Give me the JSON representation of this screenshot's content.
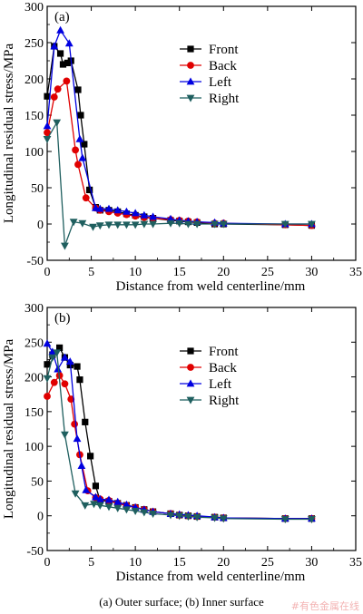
{
  "chart_data": [
    {
      "type": "line",
      "panel_label": "(a)",
      "xlabel": "Distance from weld centerline/mm",
      "ylabel": "Longitudinal residual stress/MPa",
      "xlim": [
        0,
        35
      ],
      "ylim": [
        -50,
        300
      ],
      "xticks": [
        0,
        5,
        10,
        15,
        20,
        25,
        30,
        35
      ],
      "yticks": [
        -50,
        0,
        50,
        100,
        150,
        200,
        250,
        300
      ],
      "grid": false,
      "legend_position": "top-right",
      "series": [
        {
          "name": "Front",
          "color": "#000000",
          "marker": "square",
          "x": [
            0,
            0.8,
            1.5,
            1.8,
            2.3,
            2.7,
            3.5,
            3.8,
            4.2,
            4.8,
            5.5,
            6,
            7,
            8,
            9,
            10,
            11,
            12,
            14,
            15,
            16,
            17,
            19,
            20,
            27,
            30
          ],
          "y": [
            176,
            245,
            235,
            220,
            222,
            225,
            185,
            150,
            110,
            47,
            23,
            19,
            19,
            17,
            14,
            12,
            10,
            8,
            5,
            4,
            3,
            2,
            0,
            0,
            -1,
            -2
          ]
        },
        {
          "name": "Back",
          "color": "#e00000",
          "marker": "circle",
          "x": [
            0,
            0.8,
            1.2,
            2.2,
            3.2,
            3.5,
            4.4,
            5.5,
            6,
            7,
            8,
            9,
            10,
            11,
            12,
            14,
            15,
            16,
            17,
            19,
            20,
            27,
            30
          ],
          "y": [
            126,
            175,
            186,
            197,
            102,
            82,
            36,
            22,
            19,
            17,
            15,
            13,
            11,
            9,
            8,
            6,
            5,
            4,
            3,
            1,
            1,
            -1,
            -2
          ]
        },
        {
          "name": "Left",
          "color": "#0000e0",
          "marker": "triangle-up",
          "x": [
            0,
            0.8,
            1.5,
            2.5,
            3.7,
            4,
            5.5,
            6,
            7,
            8,
            9,
            10,
            11,
            12,
            14,
            15,
            16,
            17,
            19,
            20,
            27,
            30
          ],
          "y": [
            135,
            245,
            267,
            249,
            117,
            91,
            22,
            21,
            21,
            19,
            17,
            15,
            12,
            10,
            7,
            5,
            4,
            3,
            2,
            1,
            0,
            0
          ]
        },
        {
          "name": "Right",
          "color": "#1f5f5f",
          "marker": "triangle-down",
          "x": [
            0,
            1.1,
            2,
            3,
            4,
            5.2,
            6,
            7,
            8,
            9,
            10,
            11,
            12,
            14,
            15,
            16,
            17,
            19,
            20,
            27,
            30
          ],
          "y": [
            117,
            140,
            -30,
            3,
            1,
            -4,
            -2,
            -1,
            -1,
            -1,
            -1,
            0,
            0,
            1,
            1,
            0,
            0,
            0,
            0,
            0,
            0
          ]
        }
      ]
    },
    {
      "type": "line",
      "panel_label": "(b)",
      "xlabel": "Distance from weld centerline/mm",
      "ylabel": "Longitudinal residual stress/MPa",
      "xlim": [
        0,
        35
      ],
      "ylim": [
        -50,
        300
      ],
      "xticks": [
        0,
        5,
        10,
        15,
        20,
        25,
        30,
        35
      ],
      "yticks": [
        -50,
        0,
        50,
        100,
        150,
        200,
        250,
        300
      ],
      "grid": false,
      "legend_position": "top-right",
      "series": [
        {
          "name": "Front",
          "color": "#000000",
          "marker": "square",
          "x": [
            0,
            0.6,
            1.4,
            2,
            2.6,
            3.4,
            3.7,
            4.3,
            4.9,
            5.5,
            6,
            7,
            8,
            9,
            10,
            11,
            12,
            14,
            15,
            16,
            17,
            19,
            20,
            27,
            30
          ],
          "y": [
            218,
            232,
            242,
            228,
            217,
            215,
            196,
            135,
            86,
            43,
            22,
            21,
            18,
            15,
            12,
            9,
            6,
            3,
            1,
            0,
            -1,
            -2,
            -3,
            -4,
            -4
          ]
        },
        {
          "name": "Back",
          "color": "#e00000",
          "marker": "circle",
          "x": [
            0,
            0.8,
            1.4,
            2,
            2.7,
            3.1,
            3.7,
            4.6,
            5.5,
            6,
            7,
            8,
            9,
            10,
            11,
            12,
            14,
            15,
            16,
            17,
            19,
            20,
            27,
            30
          ],
          "y": [
            172,
            192,
            202,
            190,
            168,
            132,
            88,
            36,
            26,
            24,
            22,
            18,
            15,
            12,
            9,
            6,
            3,
            1,
            0,
            -1,
            -2,
            -3,
            -4,
            -4
          ]
        },
        {
          "name": "Left",
          "color": "#0000e0",
          "marker": "triangle-up",
          "x": [
            0,
            0.6,
            1.2,
            2,
            2.6,
            3.4,
            3.9,
            4.4,
            5.5,
            6,
            7,
            8,
            9,
            10,
            11,
            12,
            14,
            15,
            16,
            17,
            19,
            20,
            27,
            30
          ],
          "y": [
            248,
            236,
            211,
            228,
            222,
            111,
            72,
            37,
            27,
            24,
            23,
            20,
            16,
            12,
            9,
            6,
            3,
            2,
            1,
            0,
            -2,
            -3,
            -4,
            -4
          ]
        },
        {
          "name": "Right",
          "color": "#1f5f5f",
          "marker": "triangle-down",
          "x": [
            0,
            0.6,
            1.1,
            2,
            3.2,
            4.3,
            5.3,
            6,
            7,
            8,
            9,
            10,
            11,
            12,
            14,
            15,
            16,
            17,
            19,
            20,
            27,
            30
          ],
          "y": [
            198,
            228,
            235,
            117,
            32,
            15,
            17,
            15,
            13,
            11,
            9,
            7,
            5,
            3,
            1,
            0,
            -1,
            -2,
            -3,
            -4,
            -5,
            -5
          ]
        }
      ]
    }
  ],
  "caption": "(a) Outer surface; (b) Inner surface",
  "watermark": "#有色金属在线"
}
